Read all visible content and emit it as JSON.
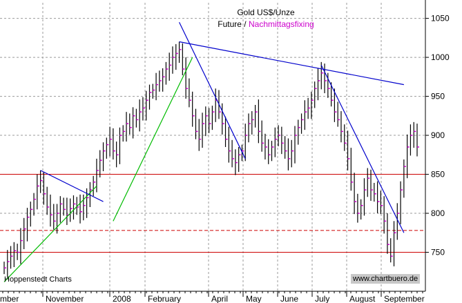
{
  "chart_data": {
    "type": "line",
    "subtype": "ohlc-bar",
    "title": "Gold US$/Unze",
    "subtitle_prefix": "Future /",
    "subtitle_highlight": "Nachmittagsfixing",
    "credit": "Hoppenstedt Charts",
    "source": "www.chartbuero.de",
    "ylim": [
      700,
      1070
    ],
    "y_ticks": [
      750,
      800,
      850,
      900,
      950,
      1000,
      1050
    ],
    "x_ticks": [
      "mber",
      "November",
      "2008",
      "February",
      "April",
      "May",
      "June",
      "July",
      "August",
      "September"
    ],
    "grid": true,
    "series": [
      {
        "name": "Nachmittagsfixing",
        "close": [
          730,
          738,
          745,
          752,
          750,
          765,
          780,
          795,
          805,
          818,
          835,
          842,
          825,
          808,
          798,
          790,
          800,
          812,
          805,
          798,
          806,
          812,
          808,
          802,
          810,
          820,
          830,
          840,
          855,
          868,
          880,
          888,
          895,
          880,
          875,
          900,
          905,
          915,
          910,
          925,
          920,
          930,
          935,
          945,
          955,
          958,
          965,
          970,
          975,
          985,
          990,
          1000,
          1005,
          1010,
          985,
          960,
          945,
          925,
          905,
          895,
          915,
          925,
          915,
          930,
          945,
          930,
          915,
          895,
          880,
          870,
          865,
          875,
          880,
          900,
          915,
          920,
          930,
          905,
          890,
          885,
          875,
          885,
          895,
          900,
          890,
          880,
          870,
          880,
          900,
          910,
          920,
          930,
          935,
          945,
          960,
          970,
          980,
          970,
          960,
          945,
          930,
          920,
          905,
          890,
          870,
          840,
          815,
          800,
          810,
          830,
          845,
          830,
          825,
          815,
          810,
          790,
          760,
          745,
          775,
          800,
          830,
          860,
          885,
          900,
          905,
          885
        ]
      }
    ],
    "horizontal_lines": [
      {
        "value": 850,
        "style": "solid"
      },
      {
        "value": 778,
        "style": "dashed"
      },
      {
        "value": 750,
        "style": "solid"
      }
    ],
    "trend_lines": [
      {
        "name": "uptrend-1",
        "from": [
          0,
          712
        ],
        "to": [
          28,
          835
        ]
      },
      {
        "name": "uptrend-2",
        "from": [
          33,
          790
        ],
        "to": [
          57,
          1000
        ]
      },
      {
        "name": "downtrend-nov",
        "from": [
          11,
          855
        ],
        "to": [
          30,
          815
        ]
      },
      {
        "name": "downtrend-feb",
        "from": [
          53,
          1045
        ],
        "to": [
          73,
          870
        ]
      },
      {
        "name": "resistance",
        "from": [
          53,
          1020
        ],
        "to": [
          121,
          965
        ]
      },
      {
        "name": "downtrend-jul",
        "from": [
          96,
          990
        ],
        "to": [
          121,
          775
        ]
      }
    ],
    "colors": {
      "bars": "#000000",
      "close": "#cc00cc",
      "uptrend": "#00bb00",
      "downtrend": "#0000cc",
      "hline": "#cc0000",
      "grid": "#999999"
    }
  }
}
